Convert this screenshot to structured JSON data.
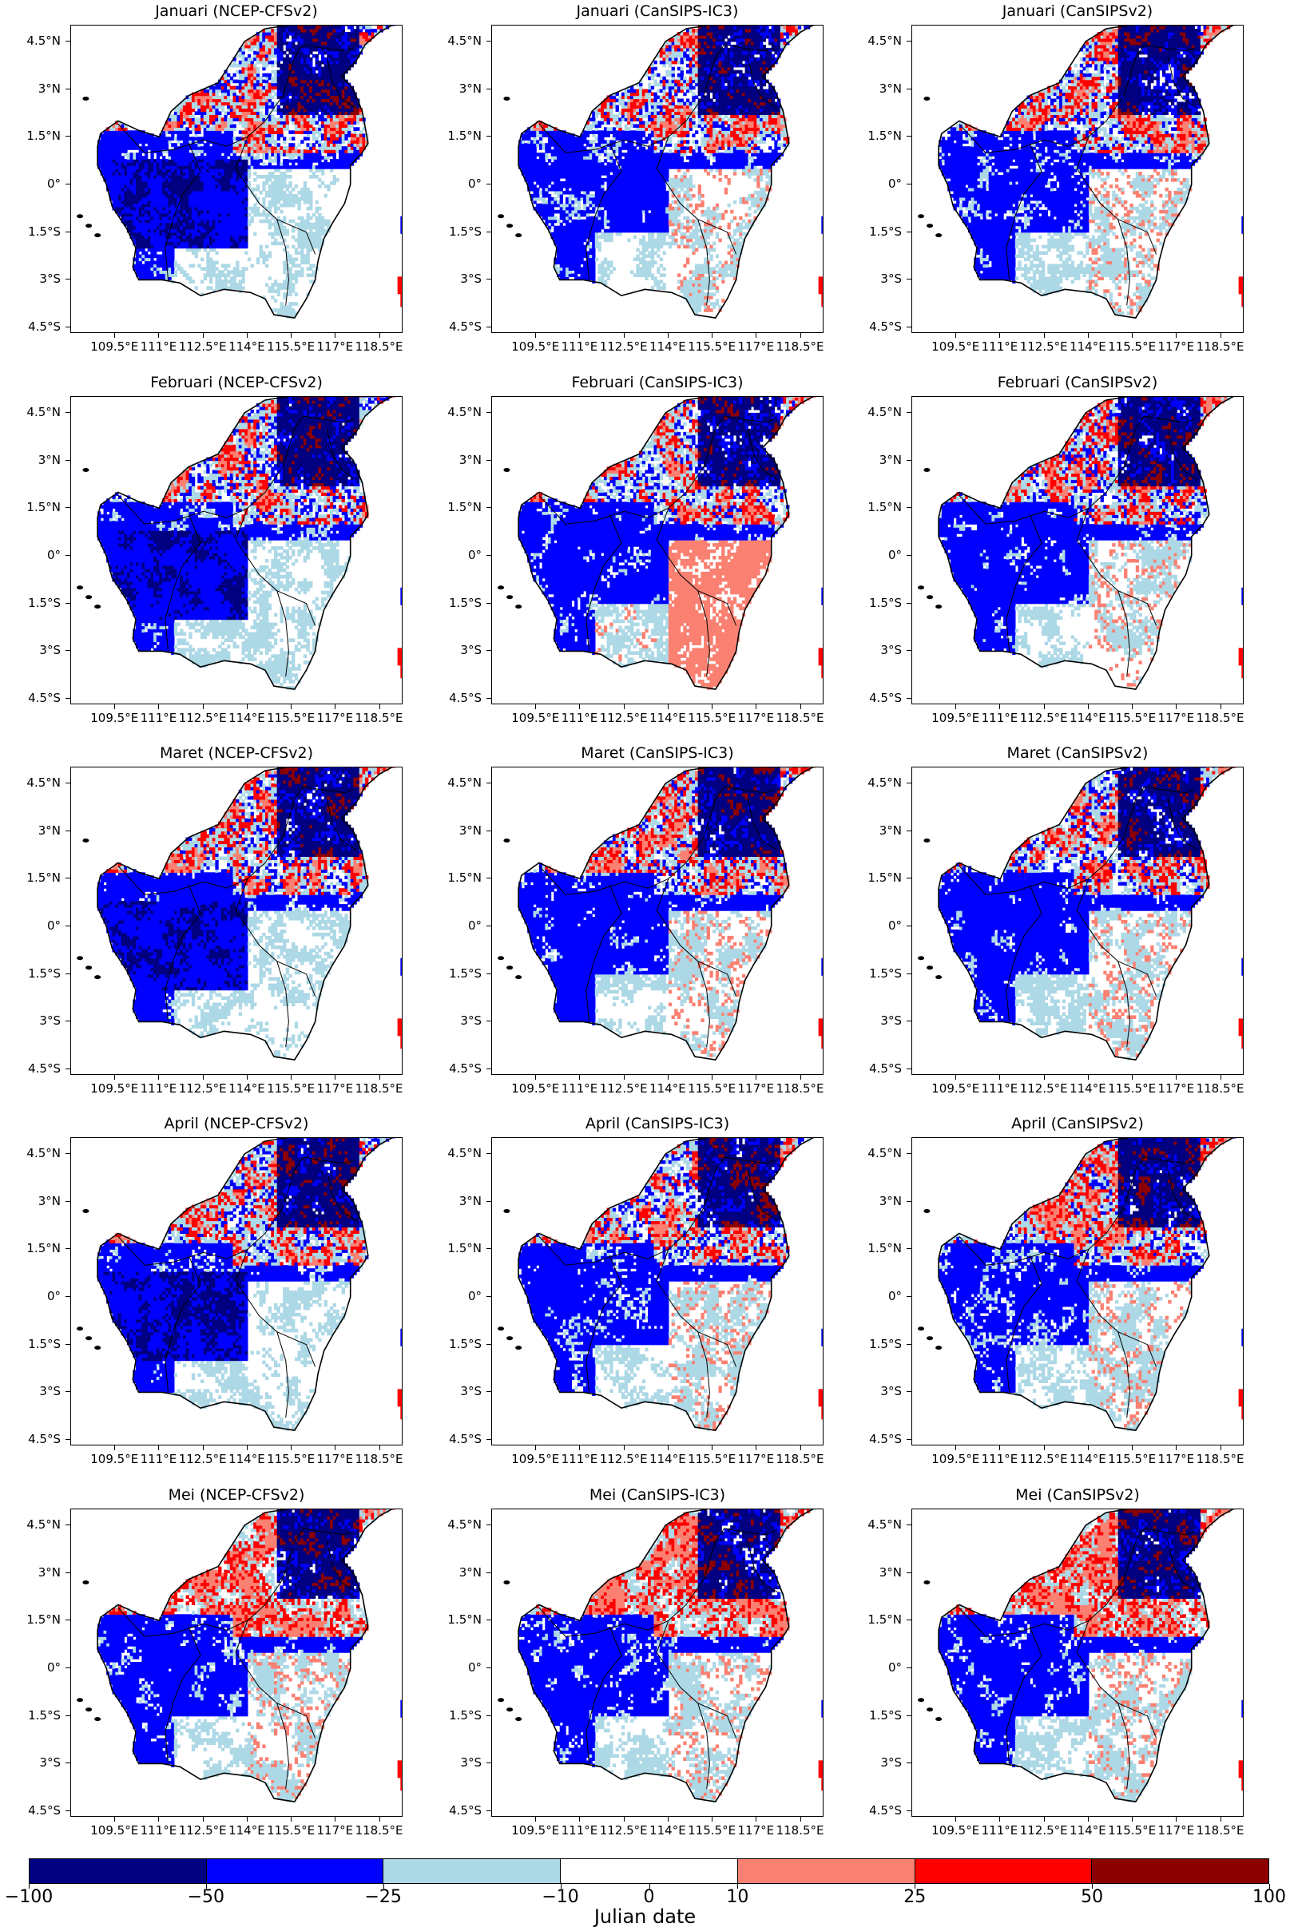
{
  "panels": [
    {
      "title": "Januari (NCEP-CFSv2)",
      "style": "cfs"
    },
    {
      "title": "Januari (CanSIPS-IC3)",
      "style": "ic3"
    },
    {
      "title": "Januari (CanSIPSv2)",
      "style": "v2"
    },
    {
      "title": "Februari (NCEP-CFSv2)",
      "style": "cfs"
    },
    {
      "title": "Februari (CanSIPS-IC3)",
      "style": "ic3feb"
    },
    {
      "title": "Februari (CanSIPSv2)",
      "style": "v2"
    },
    {
      "title": "Maret (NCEP-CFSv2)",
      "style": "cfs"
    },
    {
      "title": "Maret (CanSIPS-IC3)",
      "style": "ic3"
    },
    {
      "title": "Maret (CanSIPSv2)",
      "style": "v2"
    },
    {
      "title": "April (NCEP-CFSv2)",
      "style": "cfs"
    },
    {
      "title": "April (CanSIPS-IC3)",
      "style": "ic3"
    },
    {
      "title": "April (CanSIPSv2)",
      "style": "v2"
    },
    {
      "title": "Mei (NCEP-CFSv2)",
      "style": "mei"
    },
    {
      "title": "Mei (CanSIPS-IC3)",
      "style": "mei"
    },
    {
      "title": "Mei (CanSIPSv2)",
      "style": "mei"
    }
  ],
  "lat_ticks": [
    "4.5°N",
    "3°N",
    "1.5°N",
    "0°",
    "1.5°S",
    "3°S",
    "4.5°S"
  ],
  "lon_ticks": [
    "109.5°E",
    "111°E",
    "112.5°E",
    "114°E",
    "115.5°E",
    "117°E",
    "118.5°E"
  ],
  "colorbar": {
    "label": "Julian date",
    "ticks": [
      "−100",
      "−50",
      "−25",
      "−10",
      "0",
      "10",
      "25",
      "50",
      "100"
    ],
    "colors": [
      "#000080",
      "#0000ff",
      "#add8e6",
      "#ffffff",
      "#fa8072",
      "#ff0000",
      "#8b0000"
    ]
  },
  "palette": {
    "navy": "#000080",
    "blue": "#0000ff",
    "lightblue": "#add8e6",
    "white": "#ffffff",
    "salmon": "#fa8072",
    "red": "#ff0000",
    "darkred": "#8b0000"
  }
}
